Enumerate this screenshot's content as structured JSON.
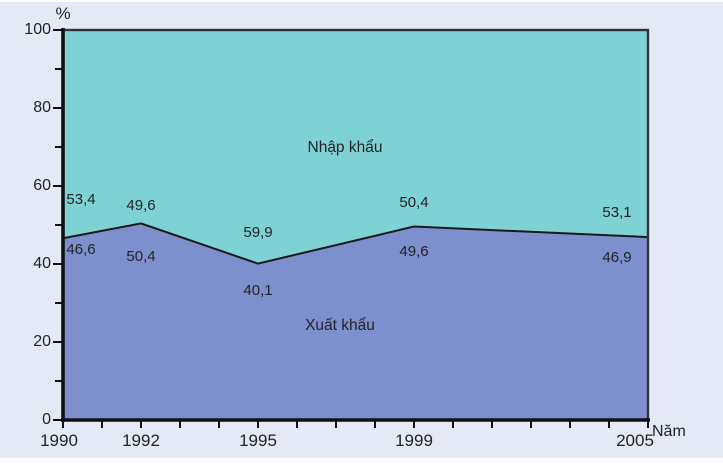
{
  "colors": {
    "panel_background": "#e4e9f6",
    "page_background": "#ffffff",
    "plot_border": "#33333c",
    "axis": "#111111",
    "boundary_line": "#1a1a1a",
    "text": "#232323"
  },
  "chart_data": {
    "type": "area",
    "subtype": "100%-stacked-area",
    "title": "",
    "xlabel": "Năm",
    "ylabel": "%",
    "x": [
      1990,
      1992,
      1995,
      1999,
      2005
    ],
    "xlim": [
      1990,
      2005
    ],
    "x_tick_step_years": 1,
    "x_labeled_ticks": [
      "1990",
      "1992",
      "1995",
      "1999",
      "2005"
    ],
    "ylim": [
      0,
      100
    ],
    "y_major_ticks": [
      0,
      20,
      40,
      60,
      80,
      100
    ],
    "y_minor_step": 10,
    "grid": false,
    "legend_position": "inside-area-labels",
    "series": [
      {
        "name": "Xuất khẩu",
        "stack_position": "bottom",
        "color": "#7d8fcd",
        "values": [
          46.6,
          50.4,
          40.1,
          49.6,
          46.9
        ],
        "point_labels": [
          "46,6",
          "50,4",
          "40,1",
          "49,6",
          "46,9"
        ]
      },
      {
        "name": "Nhập khẩu",
        "stack_position": "top",
        "color": "#7fd2d4",
        "values": [
          53.4,
          49.6,
          59.9,
          50.4,
          53.1
        ],
        "point_labels": [
          "53,4",
          "49,6",
          "59,9",
          "50,4",
          "53,1"
        ]
      }
    ]
  }
}
